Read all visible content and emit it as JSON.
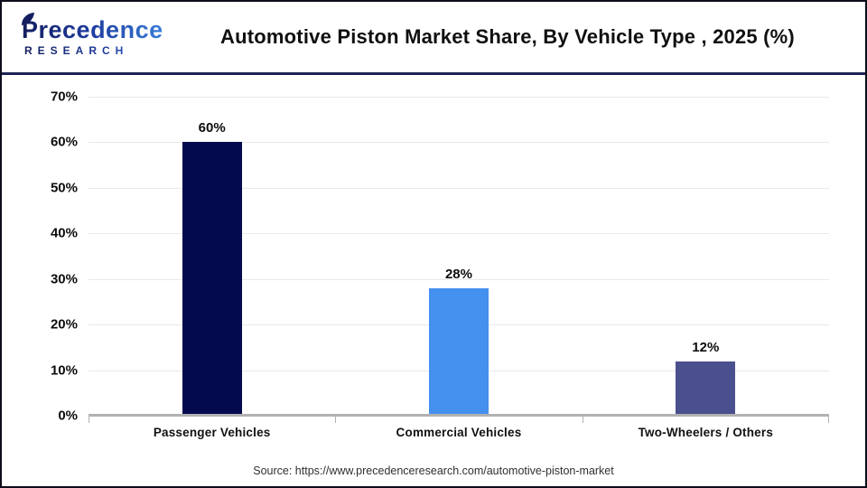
{
  "header": {
    "logo": {
      "line1": "Precedence",
      "line2": "RESEARCH"
    },
    "title": "Automotive Piston Market Share, By Vehicle Type , 2025 (%)"
  },
  "chart_data": {
    "type": "bar",
    "title": "Automotive Piston Market Share, By Vehicle Type , 2025 (%)",
    "categories": [
      "Passenger Vehicles",
      "Commercial Vehicles",
      "Two-Wheelers / Others"
    ],
    "values": [
      60,
      28,
      12
    ],
    "value_labels": [
      "60%",
      "28%",
      "12%"
    ],
    "xlabel": "",
    "ylabel": "",
    "ylim": [
      0,
      70
    ],
    "ytick_step": 10,
    "yticks": [
      "70%",
      "60%",
      "50%",
      "40%",
      "30%",
      "20%",
      "10%",
      "0%"
    ],
    "grid": "horizontal light gray",
    "legend": false,
    "bar_colors": [
      "#030a4e",
      "#4490ee",
      "#4a4f8d"
    ],
    "colors": {
      "axis": "#b2b2b2",
      "gridline": "#e9e9e9",
      "divider_navy": "#1c2456",
      "brand_dark_blue": "#131f5e",
      "brand_light_blue": "#3d86e0"
    }
  },
  "footer": {
    "source": "Source: https://www.precedenceresearch.com/automotive-piston-market"
  }
}
